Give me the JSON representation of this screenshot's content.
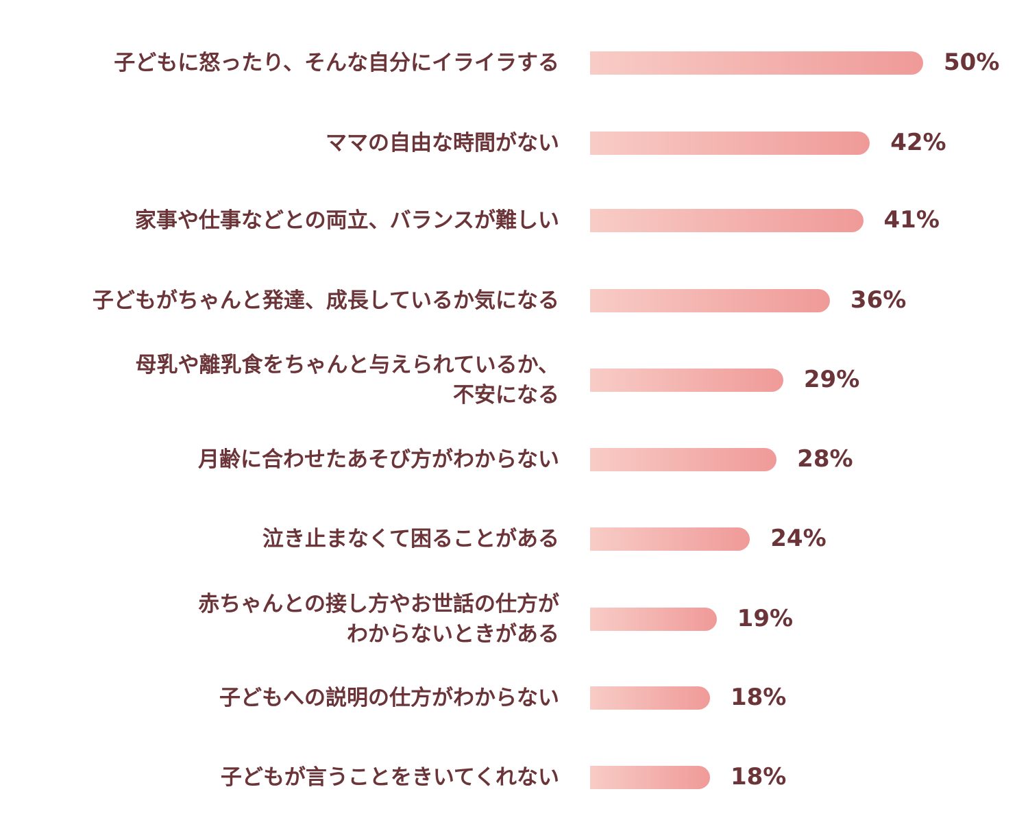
{
  "colors": {
    "text": "#6b3438",
    "bar_start": "#f8ccc6",
    "bar_end": "#ef9a98"
  },
  "chart_data": {
    "type": "bar",
    "orientation": "horizontal",
    "categories": [
      "子どもに怒ったり、そんな自分にイライラする",
      "ママの自由な時間がない",
      "家事や仕事などとの両立、バランスが難しい",
      "子どもがちゃんと発達、成長しているか気になる",
      "母乳や離乳食をちゃんと与えられているか、\n不安になる",
      "月齢に合わせたあそび方がわからない",
      "泣き止まなくて困ることがある",
      "赤ちゃんとの接し方やお世話の仕方が\nわからないときがある",
      "子どもへの説明の仕方がわからない",
      "子どもが言うことをきいてくれない"
    ],
    "values": [
      50,
      42,
      41,
      36,
      29,
      28,
      24,
      19,
      18,
      18
    ],
    "value_labels": [
      "50%",
      "42%",
      "41%",
      "36%",
      "29%",
      "28%",
      "24%",
      "19%",
      "18%",
      "18%"
    ],
    "unit": "%",
    "xlim": [
      0,
      50
    ],
    "grid": false,
    "legend": "none"
  }
}
